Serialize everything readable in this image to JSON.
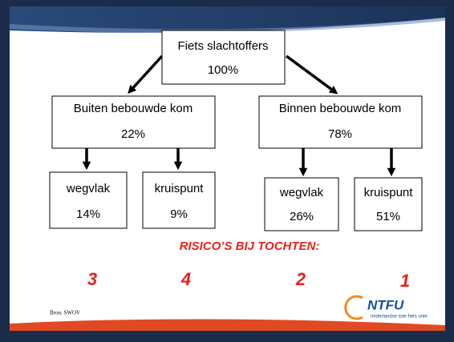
{
  "nodes": [
    {
      "label": "Fiets slachtoffers",
      "value": "100%"
    },
    {
      "label": "Buiten bebouwde kom",
      "value": "22%"
    },
    {
      "label": "Binnen bebouwde kom",
      "value": "78%"
    },
    {
      "label": "wegvlak",
      "value": "14%"
    },
    {
      "label": "kruispunt",
      "value": "9%"
    },
    {
      "label": "wegvlak",
      "value": "26%"
    },
    {
      "label": "kruispunt",
      "value": "51%"
    }
  ],
  "risk_title": "RISICO’S BIJ TOCHTEN:",
  "risks": [
    "3",
    "4",
    "2",
    "1"
  ],
  "source": "Bron. SWOV",
  "logo": {
    "name": "NTFU",
    "tagline": "nederlandse toer fiets unie"
  }
}
